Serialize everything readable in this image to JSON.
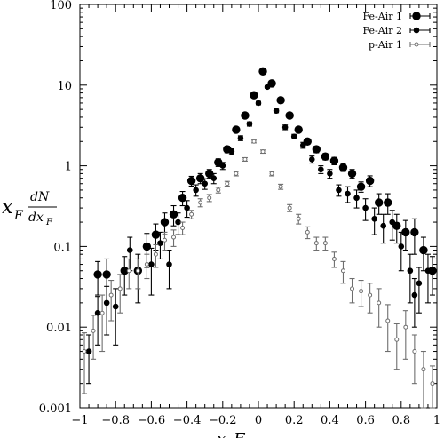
{
  "chart_data": {
    "type": "scatter",
    "xlabel": "x_F",
    "ylabel": {
      "main": "x",
      "sub": "F",
      "num": "dN",
      "den": "dx",
      "den_sub": "F"
    },
    "xlim": [
      -1,
      1
    ],
    "ylim": [
      0.001,
      100
    ],
    "yscale": "log",
    "grid": false,
    "legend_position": "top-right",
    "x_ticks": [
      -1,
      -0.8,
      -0.6,
      -0.4,
      -0.2,
      0,
      0.2,
      0.4,
      0.6,
      0.8,
      1
    ],
    "x_tick_labels": [
      "−1",
      "−0.8",
      "−0.6",
      "−0.4",
      "−0.2",
      "0",
      "0.2",
      "0.4",
      "0.6",
      "0.8",
      "1"
    ],
    "y_ticks": [
      0.001,
      0.01,
      0.1,
      1,
      10,
      100
    ],
    "y_tick_labels": [
      "0.001",
      "0.01",
      "0.1",
      "1",
      "10",
      "100"
    ],
    "series": [
      {
        "name": "Fe-Air 1",
        "marker": "large-filled-circle",
        "color": "#000000",
        "points": [
          {
            "x": -0.9,
            "y": 0.045,
            "err": 0.02
          },
          {
            "x": -0.85,
            "y": 0.045,
            "err": 0.025
          },
          {
            "x": -0.75,
            "y": 0.05,
            "err": 0.025
          },
          {
            "x": -0.675,
            "y": 0.05,
            "err": 0.03
          },
          {
            "x": -0.625,
            "y": 0.1,
            "err": 0.045
          },
          {
            "x": -0.575,
            "y": 0.14,
            "err": 0.05
          },
          {
            "x": -0.525,
            "y": 0.2,
            "err": 0.06
          },
          {
            "x": -0.475,
            "y": 0.25,
            "err": 0.07
          },
          {
            "x": -0.425,
            "y": 0.4,
            "err": 0.08
          },
          {
            "x": -0.375,
            "y": 0.65,
            "err": 0.09
          },
          {
            "x": -0.325,
            "y": 0.7,
            "err": 0.1
          },
          {
            "x": -0.275,
            "y": 0.8,
            "err": 0.1
          },
          {
            "x": -0.225,
            "y": 1.1,
            "err": 0.12
          },
          {
            "x": -0.175,
            "y": 1.6,
            "err": 0.15
          },
          {
            "x": -0.125,
            "y": 2.8,
            "err": 0.2
          },
          {
            "x": -0.075,
            "y": 4.2,
            "err": 0.2
          },
          {
            "x": -0.025,
            "y": 7.5,
            "err": 0.3
          },
          {
            "x": 0.025,
            "y": 14.8,
            "err": 0.4
          },
          {
            "x": 0.075,
            "y": 10.5,
            "err": 0.3
          },
          {
            "x": 0.125,
            "y": 6.5,
            "err": 0.25
          },
          {
            "x": 0.175,
            "y": 4.2,
            "err": 0.2
          },
          {
            "x": 0.225,
            "y": 2.8,
            "err": 0.2
          },
          {
            "x": 0.275,
            "y": 2.0,
            "err": 0.15
          },
          {
            "x": 0.325,
            "y": 1.6,
            "err": 0.15
          },
          {
            "x": 0.375,
            "y": 1.3,
            "err": 0.12
          },
          {
            "x": 0.425,
            "y": 1.15,
            "err": 0.12
          },
          {
            "x": 0.475,
            "y": 0.95,
            "err": 0.1
          },
          {
            "x": 0.525,
            "y": 0.8,
            "err": 0.1
          },
          {
            "x": 0.575,
            "y": 0.55,
            "err": 0.08
          },
          {
            "x": 0.625,
            "y": 0.65,
            "err": 0.1
          },
          {
            "x": 0.675,
            "y": 0.35,
            "err": 0.1
          },
          {
            "x": 0.725,
            "y": 0.35,
            "err": 0.1
          },
          {
            "x": 0.775,
            "y": 0.18,
            "err": 0.07
          },
          {
            "x": 0.825,
            "y": 0.15,
            "err": 0.06
          },
          {
            "x": 0.875,
            "y": 0.15,
            "err": 0.07
          },
          {
            "x": 0.925,
            "y": 0.09,
            "err": 0.04
          },
          {
            "x": 0.975,
            "y": 0.05,
            "err": 0.025
          }
        ]
      },
      {
        "name": "Fe-Air 2",
        "marker": "filled-circle",
        "color": "#000000",
        "points": [
          {
            "x": -0.95,
            "y": 0.005,
            "err": 0.003
          },
          {
            "x": -0.9,
            "y": 0.015,
            "err": 0.009
          },
          {
            "x": -0.85,
            "y": 0.02,
            "err": 0.012
          },
          {
            "x": -0.8,
            "y": 0.018,
            "err": 0.012
          },
          {
            "x": -0.72,
            "y": 0.09,
            "err": 0.04
          },
          {
            "x": -0.6,
            "y": 0.06,
            "err": 0.035
          },
          {
            "x": -0.55,
            "y": 0.11,
            "err": 0.04
          },
          {
            "x": -0.5,
            "y": 0.06,
            "err": 0.03
          },
          {
            "x": -0.45,
            "y": 0.2,
            "err": 0.06
          },
          {
            "x": -0.4,
            "y": 0.3,
            "err": 0.07
          },
          {
            "x": -0.35,
            "y": 0.5,
            "err": 0.08
          },
          {
            "x": -0.3,
            "y": 0.6,
            "err": 0.09
          },
          {
            "x": -0.25,
            "y": 0.7,
            "err": 0.1
          },
          {
            "x": -0.2,
            "y": 1.0,
            "err": 0.1
          },
          {
            "x": -0.15,
            "y": 1.5,
            "err": 0.12
          },
          {
            "x": -0.1,
            "y": 2.2,
            "err": 0.15
          },
          {
            "x": -0.05,
            "y": 3.3,
            "err": 0.2
          },
          {
            "x": 0.0,
            "y": 6.0,
            "err": 0.3
          },
          {
            "x": 0.05,
            "y": 9.5,
            "err": 0.35
          },
          {
            "x": 0.1,
            "y": 4.8,
            "err": 0.25
          },
          {
            "x": 0.15,
            "y": 3.0,
            "err": 0.2
          },
          {
            "x": 0.2,
            "y": 2.3,
            "err": 0.15
          },
          {
            "x": 0.25,
            "y": 1.8,
            "err": 0.15
          },
          {
            "x": 0.3,
            "y": 1.2,
            "err": 0.12
          },
          {
            "x": 0.35,
            "y": 0.9,
            "err": 0.1
          },
          {
            "x": 0.4,
            "y": 0.8,
            "err": 0.1
          },
          {
            "x": 0.45,
            "y": 0.5,
            "err": 0.08
          },
          {
            "x": 0.5,
            "y": 0.45,
            "err": 0.1
          },
          {
            "x": 0.55,
            "y": 0.4,
            "err": 0.1
          },
          {
            "x": 0.6,
            "y": 0.3,
            "err": 0.09
          },
          {
            "x": 0.65,
            "y": 0.22,
            "err": 0.08
          },
          {
            "x": 0.7,
            "y": 0.18,
            "err": 0.07
          },
          {
            "x": 0.75,
            "y": 0.2,
            "err": 0.08
          },
          {
            "x": 0.8,
            "y": 0.1,
            "err": 0.05
          },
          {
            "x": 0.85,
            "y": 0.05,
            "err": 0.03
          },
          {
            "x": 0.875,
            "y": 0.025,
            "err": 0.015
          },
          {
            "x": 0.9,
            "y": 0.035,
            "err": 0.02
          },
          {
            "x": 0.95,
            "y": 0.05,
            "err": 0.03
          }
        ]
      },
      {
        "name": "p-Air 1",
        "marker": "open-circle",
        "color": "#6e6e6e",
        "points": [
          {
            "x": -0.975,
            "y": 0.005,
            "err": 0.0035
          },
          {
            "x": -0.925,
            "y": 0.009,
            "err": 0.005
          },
          {
            "x": -0.875,
            "y": 0.015,
            "err": 0.01
          },
          {
            "x": -0.825,
            "y": 0.025,
            "err": 0.013
          },
          {
            "x": -0.775,
            "y": 0.03,
            "err": 0.015
          },
          {
            "x": -0.725,
            "y": 0.05,
            "err": 0.02
          },
          {
            "x": -0.675,
            "y": 0.05,
            "err": 0.02
          },
          {
            "x": -0.625,
            "y": 0.06,
            "err": 0.02
          },
          {
            "x": -0.575,
            "y": 0.08,
            "err": 0.025
          },
          {
            "x": -0.525,
            "y": 0.12,
            "err": 0.03
          },
          {
            "x": -0.475,
            "y": 0.13,
            "err": 0.03
          },
          {
            "x": -0.425,
            "y": 0.17,
            "err": 0.03
          },
          {
            "x": -0.375,
            "y": 0.25,
            "err": 0.03
          },
          {
            "x": -0.325,
            "y": 0.35,
            "err": 0.04
          },
          {
            "x": -0.275,
            "y": 0.4,
            "err": 0.04
          },
          {
            "x": -0.225,
            "y": 0.5,
            "err": 0.04
          },
          {
            "x": -0.175,
            "y": 0.6,
            "err": 0.04
          },
          {
            "x": -0.125,
            "y": 0.8,
            "err": 0.05
          },
          {
            "x": -0.075,
            "y": 1.2,
            "err": 0.06
          },
          {
            "x": -0.025,
            "y": 2.0,
            "err": 0.08
          },
          {
            "x": 0.025,
            "y": 1.5,
            "err": 0.07
          },
          {
            "x": 0.075,
            "y": 0.8,
            "err": 0.05
          },
          {
            "x": 0.125,
            "y": 0.55,
            "err": 0.04
          },
          {
            "x": 0.175,
            "y": 0.3,
            "err": 0.03
          },
          {
            "x": 0.225,
            "y": 0.22,
            "err": 0.03
          },
          {
            "x": 0.275,
            "y": 0.15,
            "err": 0.025
          },
          {
            "x": 0.325,
            "y": 0.11,
            "err": 0.02
          },
          {
            "x": 0.375,
            "y": 0.11,
            "err": 0.02
          },
          {
            "x": 0.425,
            "y": 0.07,
            "err": 0.015
          },
          {
            "x": 0.475,
            "y": 0.05,
            "err": 0.015
          },
          {
            "x": 0.525,
            "y": 0.03,
            "err": 0.01
          },
          {
            "x": 0.575,
            "y": 0.028,
            "err": 0.01
          },
          {
            "x": 0.625,
            "y": 0.025,
            "err": 0.01
          },
          {
            "x": 0.675,
            "y": 0.02,
            "err": 0.01
          },
          {
            "x": 0.725,
            "y": 0.012,
            "err": 0.007
          },
          {
            "x": 0.775,
            "y": 0.007,
            "err": 0.004
          },
          {
            "x": 0.825,
            "y": 0.01,
            "err": 0.006
          },
          {
            "x": 0.875,
            "y": 0.005,
            "err": 0.003
          },
          {
            "x": 0.925,
            "y": 0.003,
            "err": 0.002
          },
          {
            "x": 0.975,
            "y": 0.002,
            "err": 0.0013
          }
        ]
      }
    ]
  }
}
